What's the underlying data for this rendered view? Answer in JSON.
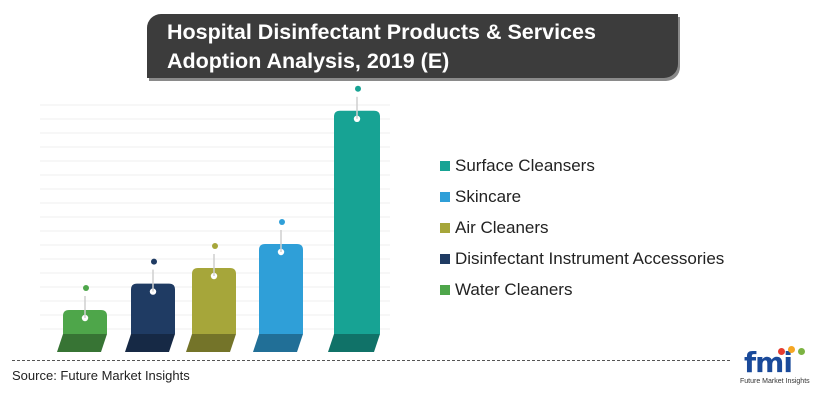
{
  "title_line1": "Hospital Disinfectant Products & Services",
  "title_line2": "Adoption Analysis, 2019 (E)",
  "source": "Source: Future Market Insights",
  "logo": {
    "main": "fmi",
    "sub": "Future Market Insights",
    "dot_colors": [
      "#e63c2f",
      "#f5a623",
      "#7cb342",
      "#1a4a9a"
    ]
  },
  "chart_data": {
    "type": "bar",
    "categories": [
      "Water Cleaners",
      "Disinfectant Instrument Accessories",
      "Air Cleaners",
      "Skincare",
      "Surface Cleansers"
    ],
    "values": [
      1.0,
      2.1,
      2.75,
      3.75,
      9.3
    ],
    "colors": [
      "#4ea64a",
      "#1f3b63",
      "#a6a63a",
      "#2f9fd8",
      "#17a394"
    ],
    "legend": [
      {
        "label": "Surface Cleansers",
        "color": "#17a394"
      },
      {
        "label": "Skincare",
        "color": "#2f9fd8"
      },
      {
        "label": "Air Cleaners",
        "color": "#a6a63a"
      },
      {
        "label": "Disinfectant Instrument Accessories",
        "color": "#1f3b63"
      },
      {
        "label": "Water Cleaners",
        "color": "#4ea64a"
      }
    ],
    "legend_position": "right",
    "value_axis_visible": false,
    "grid": true,
    "ylim": [
      0,
      10
    ]
  }
}
